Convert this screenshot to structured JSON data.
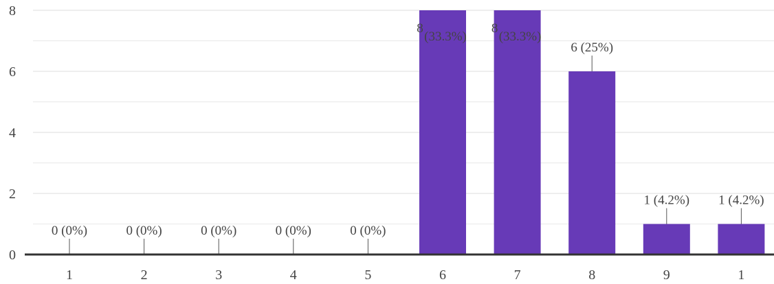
{
  "chart_data": {
    "type": "bar",
    "title": "",
    "xlabel": "",
    "ylabel": "",
    "categories": [
      "1",
      "2",
      "3",
      "4",
      "5",
      "6",
      "7",
      "8",
      "9",
      "1"
    ],
    "values": [
      0,
      0,
      0,
      0,
      0,
      8,
      8,
      6,
      1,
      1
    ],
    "data_labels": [
      "0 (0%)",
      "0 (0%)",
      "0 (0%)",
      "0 (0%)",
      "0 (0%)",
      "8 (33.3%)",
      "8 (33.3%)",
      "6 (25%)",
      "1 (4.2%)",
      "1 (4.2%)"
    ],
    "ylim": [
      0,
      8
    ],
    "yticks": [
      "0",
      "2",
      "4",
      "6",
      "8"
    ],
    "grid": true,
    "legend": "none",
    "bar_color": "#673ab7",
    "grid_color": "#e8e8e8",
    "axis_color": "#333333"
  }
}
